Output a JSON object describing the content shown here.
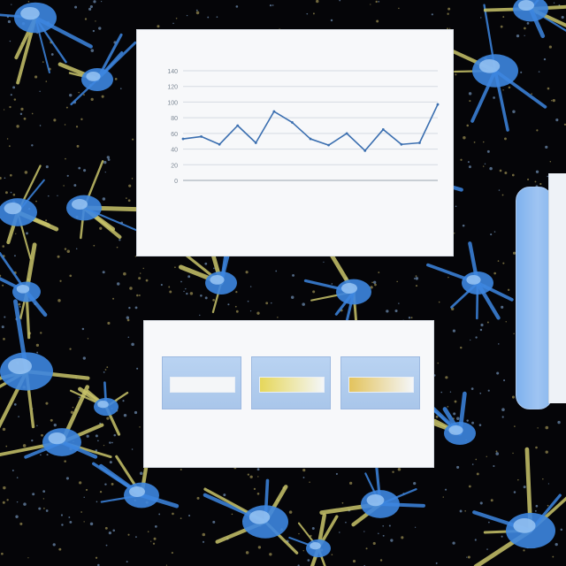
{
  "background": {
    "base_color": "#050508",
    "accent_blue": "#3d86e0",
    "accent_yellow": "#c9c46a",
    "motif": "blue-and-yellow-microorganism-collage"
  },
  "chart": {
    "title": "",
    "xlabel": "",
    "ylabel": "",
    "line_color": "#3b6fb0"
  },
  "chart_data": {
    "type": "line",
    "categories": [],
    "x": [
      1,
      2,
      3,
      4,
      5,
      6,
      7,
      8,
      9,
      10,
      11,
      12,
      13,
      14
    ],
    "values": [
      53,
      56,
      46,
      70,
      48,
      88,
      74,
      53,
      45,
      60,
      38,
      65,
      46,
      48
    ],
    "extra_point": 97,
    "ylim": [
      0,
      140
    ],
    "yticks": [
      "0",
      "20",
      "40",
      "60",
      "80",
      "100",
      "120",
      "140"
    ],
    "grid": true,
    "legend": "none"
  },
  "infographic": {
    "title": "",
    "subtitle": "",
    "card_accents": [
      "#f4f6f8",
      "#e6d75a",
      "#e3c35c"
    ],
    "description": "",
    "footer": ""
  },
  "side": {
    "device_color": "#9fc4f2",
    "card_color": "#eef2f7"
  }
}
